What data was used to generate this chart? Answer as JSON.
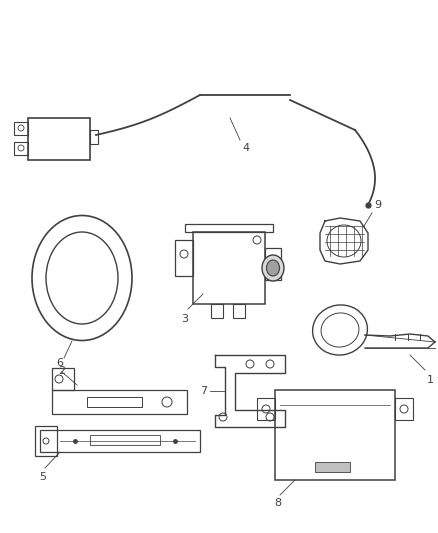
{
  "background_color": "#ffffff",
  "line_color": "#404040",
  "label_color": "#404040",
  "label_fontsize": 8,
  "fig_width": 4.38,
  "fig_height": 5.33,
  "dpi": 100
}
